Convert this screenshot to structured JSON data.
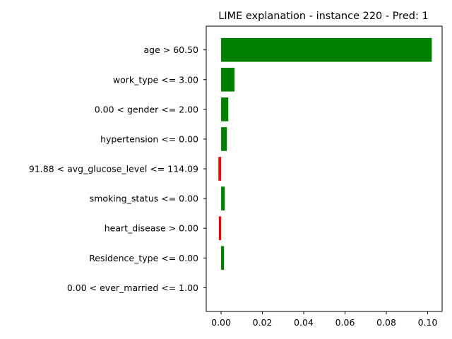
{
  "chart_data": {
    "type": "bar",
    "orientation": "horizontal",
    "title": "LIME explanation - instance 220 - Pred: 1",
    "xlabel": "",
    "ylabel": "",
    "categories": [
      "age > 60.50",
      "work_type <= 3.00",
      "0.00 < gender <= 2.00",
      "hypertension <= 0.00",
      "91.88 < avg_glucose_level <= 114.09",
      "smoking_status <= 0.00",
      "heart_disease > 0.00",
      "Residence_type <= 0.00",
      "0.00 < ever_married <= 1.00"
    ],
    "values": [
      0.102,
      0.0065,
      0.0035,
      0.0028,
      -0.0013,
      0.0018,
      -0.0011,
      0.0014,
      0.0
    ],
    "xlim": [
      -0.0072,
      0.107
    ],
    "xticks": [
      0.0,
      0.02,
      0.04,
      0.06,
      0.08,
      0.1
    ],
    "xtick_labels": [
      "0.00",
      "0.02",
      "0.04",
      "0.06",
      "0.08",
      "0.10"
    ],
    "grid": false,
    "legend": "none",
    "colors": {
      "positive": "#008000",
      "negative": "#ff0000",
      "axis": "#000000"
    }
  }
}
